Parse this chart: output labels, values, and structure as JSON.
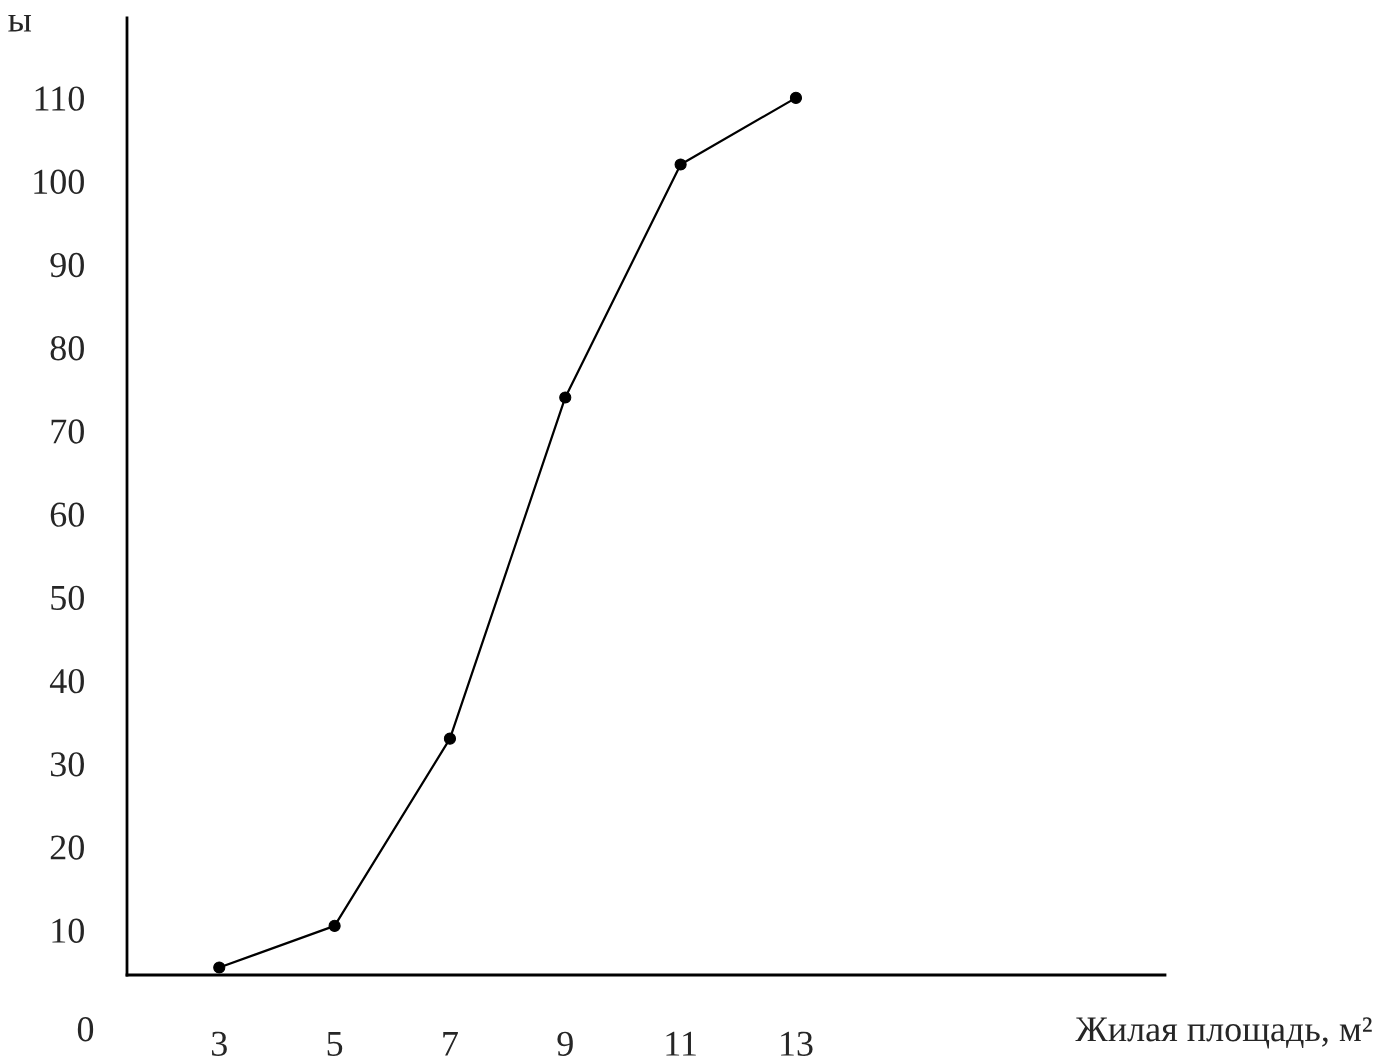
{
  "chart_data": {
    "type": "line",
    "xlabel": "Жилая площадь, м²",
    "ylabel": "ы",
    "x": [
      3,
      5,
      7,
      9,
      11,
      13
    ],
    "series": [
      {
        "color": "#000000",
        "values": [
          5.5,
          10.5,
          33,
          74,
          102,
          110
        ]
      }
    ],
    "xlim": [
      1.4,
      19.4
    ],
    "ylim": [
      4.6,
      119.6
    ],
    "xticks": [
      3,
      5,
      7,
      9,
      11,
      13
    ],
    "yticks": [
      10,
      20,
      30,
      40,
      50,
      60,
      70,
      80,
      90,
      100,
      110
    ],
    "annotations": [
      "0"
    ],
    "marker": "circle",
    "line_style": "solid",
    "grid": false,
    "legend": false
  }
}
